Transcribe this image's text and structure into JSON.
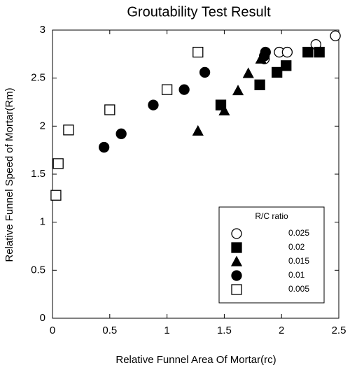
{
  "chart_data": {
    "type": "scatter",
    "title": "Groutability Test Result",
    "x_label": "Relative Funnel Area Of Mortar(rc)",
    "y_label": "Relative Funnel Speed of Mortar(Rm)",
    "xlim": [
      0,
      2.5
    ],
    "ylim": [
      0,
      3
    ],
    "xticks": [
      0,
      0.5,
      1,
      1.5,
      2,
      2.5
    ],
    "yticks": [
      0,
      0.5,
      1,
      1.5,
      2,
      2.5,
      3
    ],
    "legend_title": "R/C ratio",
    "legend_position": "lower right",
    "series": [
      {
        "name": "0.025",
        "marker": "open-circle",
        "color": "#000000",
        "x": [
          1.85,
          1.98,
          2.05,
          2.3,
          2.47
        ],
        "values": [
          2.7,
          2.77,
          2.77,
          2.85,
          2.94
        ]
      },
      {
        "name": "0.02",
        "marker": "filled-square",
        "color": "#000000",
        "x": [
          1.47,
          1.81,
          1.96,
          2.04,
          2.23,
          2.33
        ],
        "values": [
          2.22,
          2.43,
          2.56,
          2.63,
          2.77,
          2.77
        ]
      },
      {
        "name": "0.015",
        "marker": "filled-triangle",
        "color": "#000000",
        "x": [
          1.27,
          1.5,
          1.62,
          1.71,
          1.82
        ],
        "values": [
          1.95,
          2.16,
          2.37,
          2.55,
          2.7
        ]
      },
      {
        "name": "0.01",
        "marker": "filled-circle",
        "color": "#000000",
        "x": [
          0.45,
          0.6,
          0.88,
          1.15,
          1.33,
          1.85,
          1.86
        ],
        "values": [
          1.78,
          1.92,
          2.22,
          2.38,
          2.56,
          2.73,
          2.77
        ]
      },
      {
        "name": "0.005",
        "marker": "open-square",
        "color": "#000000",
        "x": [
          0.03,
          0.05,
          0.14,
          0.5,
          1.0,
          1.27
        ],
        "values": [
          1.28,
          1.61,
          1.96,
          2.17,
          2.38,
          2.77
        ]
      }
    ]
  }
}
